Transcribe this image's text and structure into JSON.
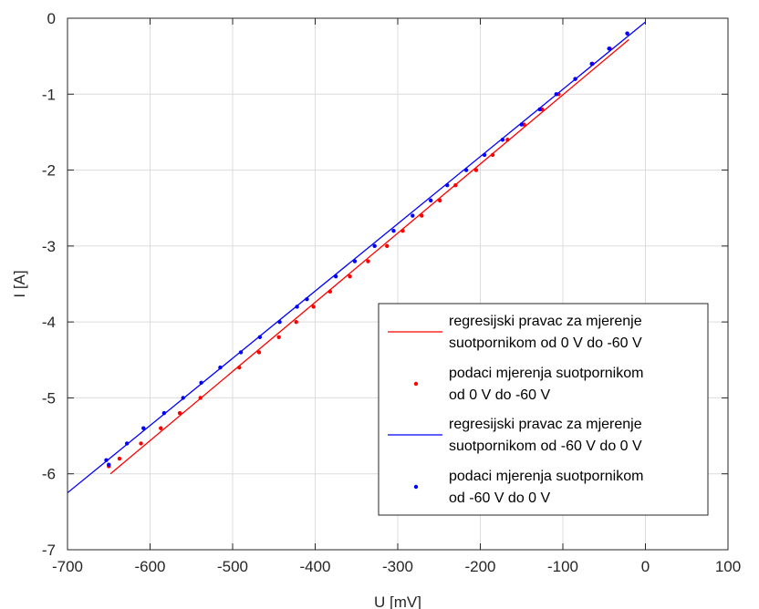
{
  "chart_data": {
    "type": "scatter",
    "xlabel": "U [mV]",
    "ylabel": "I [A]",
    "xlim": [
      -700,
      100
    ],
    "ylim": [
      -7,
      0
    ],
    "xticks": [
      -700,
      -600,
      -500,
      -400,
      -300,
      -200,
      -100,
      0,
      100
    ],
    "yticks": [
      0,
      -1,
      -2,
      -3,
      -4,
      -5,
      -6,
      -7
    ],
    "grid": true,
    "legend_position": "bottom-right",
    "series": [
      {
        "name": "regresijski pravac za mjerenje suotpornikom od 0 V do -60 V",
        "kind": "line",
        "color": "#ff0000",
        "x": [
          -648,
          -20
        ],
        "y": [
          -6.0,
          -0.28
        ]
      },
      {
        "name": "podaci mjerenja suotpornikom od 0 V do -60 V",
        "kind": "points",
        "color": "#ff0000",
        "x": [
          -650,
          -637,
          -611,
          -587,
          -564,
          -539,
          -492,
          -468,
          -444,
          -423,
          -402,
          -382,
          -358,
          -336,
          -313,
          -294,
          -271,
          -249,
          -230,
          -205,
          -185,
          -167,
          -147,
          -125,
          -105,
          -85,
          -64,
          -43,
          -22
        ],
        "y": [
          -5.9,
          -5.8,
          -5.6,
          -5.4,
          -5.2,
          -5.0,
          -4.6,
          -4.4,
          -4.2,
          -4.0,
          -3.8,
          -3.6,
          -3.4,
          -3.2,
          -3.0,
          -2.8,
          -2.6,
          -2.4,
          -2.2,
          -2.0,
          -1.8,
          -1.6,
          -1.4,
          -1.2,
          -1.0,
          -0.8,
          -0.6,
          -0.4,
          -0.2
        ]
      },
      {
        "name": "regresijski pravac za mjerenje suotpornikom od -60 V do 0 V",
        "kind": "line",
        "color": "#0000ff",
        "x": [
          -700,
          0
        ],
        "y": [
          -6.25,
          -0.05
        ]
      },
      {
        "name": "podaci mjerenja suotpornikom od -60 V do 0 V",
        "kind": "points",
        "color": "#0000ff",
        "x": [
          -653,
          -650,
          -628,
          -608,
          -583,
          -560,
          -538,
          -515,
          -490,
          -467,
          -443,
          -422,
          -410,
          -375,
          -352,
          -328,
          -305,
          -282,
          -260,
          -240,
          -217,
          -195,
          -173,
          -150,
          -128,
          -108,
          -85,
          -65,
          -44,
          -22
        ],
        "y": [
          -5.82,
          -5.88,
          -5.6,
          -5.4,
          -5.2,
          -5.0,
          -4.8,
          -4.6,
          -4.4,
          -4.2,
          -4.0,
          -3.8,
          -3.7,
          -3.4,
          -3.2,
          -3.0,
          -2.8,
          -2.6,
          -2.4,
          -2.2,
          -2.0,
          -1.8,
          -1.6,
          -1.4,
          -1.2,
          -1.0,
          -0.8,
          -0.6,
          -0.4,
          -0.2
        ]
      }
    ],
    "legend": [
      {
        "line1": "regresijski pravac za mjerenje",
        "line2": "suotpornikom od 0 V do -60 V",
        "color": "#ff0000",
        "marker": "line"
      },
      {
        "line1": "podaci mjerenja suotpornikom",
        "line2": "od 0 V do -60 V",
        "color": "#ff0000",
        "marker": "point"
      },
      {
        "line1": "regresijski pravac za mjerenje",
        "line2": "suotpornikom od -60 V do 0 V",
        "color": "#0000ff",
        "marker": "line"
      },
      {
        "line1": "podaci mjerenja suotpornikom",
        "line2": "od -60 V do 0 V",
        "color": "#0000ff",
        "marker": "point"
      }
    ]
  }
}
